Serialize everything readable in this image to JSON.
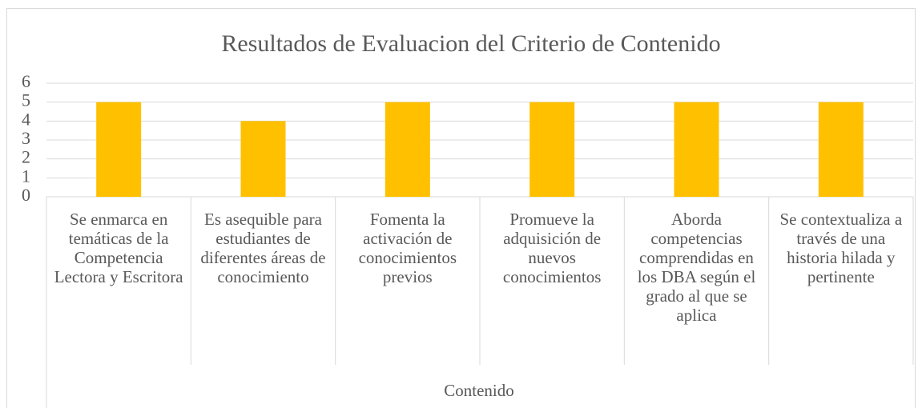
{
  "chart_data": {
    "type": "bar",
    "title": "Resultados de Evaluacion del  Criterio de Contenido",
    "xlabel": "Contenido",
    "categories": [
      "Se enmarca en temáticas de la Competencia Lectora y Escritora",
      "Es asequible para estudiantes de diferentes áreas de conocimiento",
      "Fomenta la activación de conocimientos previos",
      "Promueve la adquisición de nuevos conocimientos",
      "Aborda competencias comprendidas en los DBA según el grado al que se aplica",
      "Se contextualiza a través de una historia hilada y pertinente"
    ],
    "values": [
      5,
      4,
      5,
      5,
      5,
      5
    ],
    "color": "#ffc000",
    "ylim": [
      0,
      6
    ],
    "yticks": [
      0,
      1,
      2,
      3,
      4,
      5,
      6
    ],
    "grid": true
  }
}
